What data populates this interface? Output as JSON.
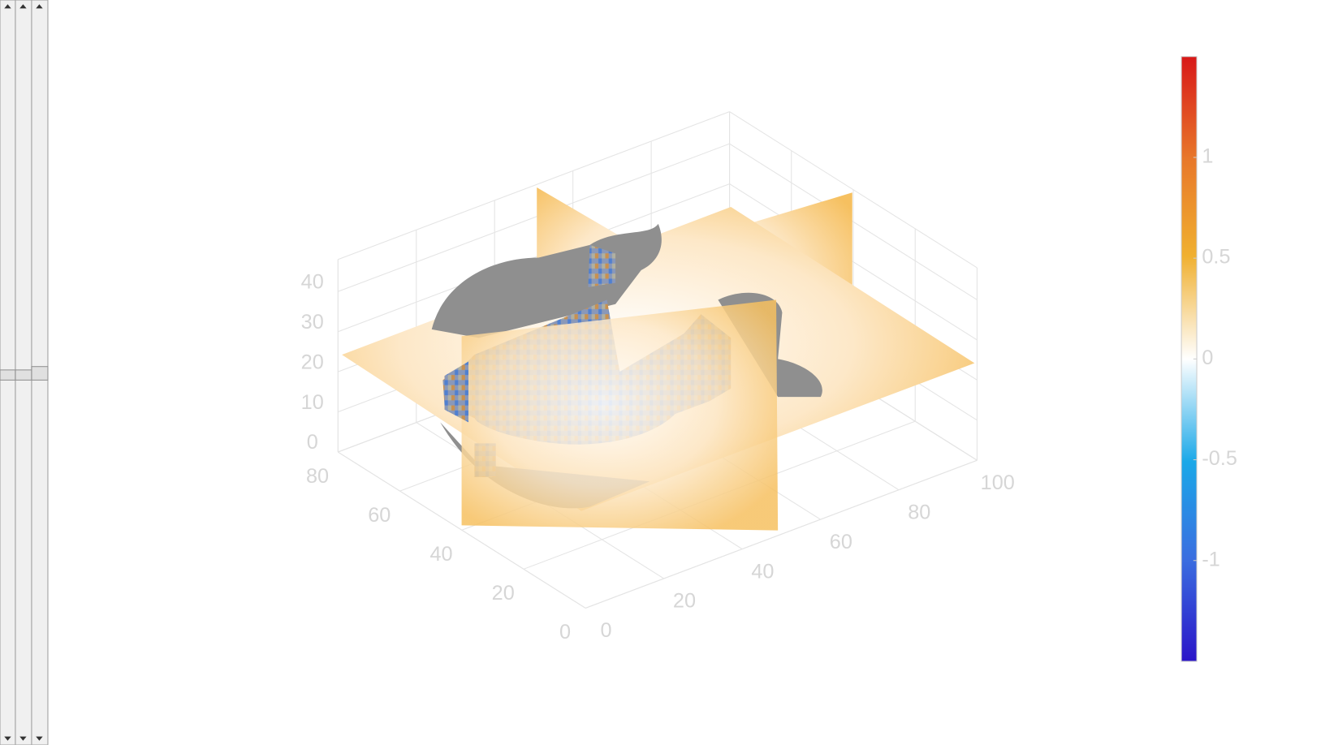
{
  "axes": {
    "xlim": [
      0,
      100
    ],
    "ylim": [
      0,
      80
    ],
    "zlim": [
      0,
      48
    ],
    "xticks": [
      0,
      20,
      40,
      60,
      80,
      100
    ],
    "yticks": [
      0,
      20,
      40,
      60,
      80
    ],
    "zticks": [
      0,
      10,
      20,
      30,
      40
    ]
  },
  "colorbar": {
    "clim": [
      -1.5,
      1.5
    ],
    "ticks": [
      -1,
      -0.5,
      0,
      0.5,
      1
    ]
  }
}
